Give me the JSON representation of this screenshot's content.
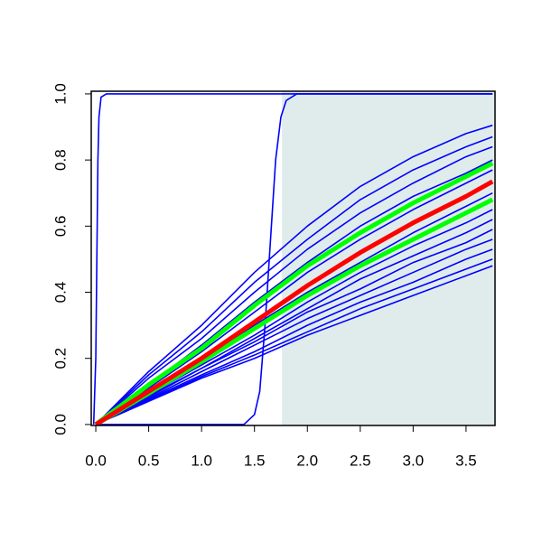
{
  "chart_data": {
    "type": "line",
    "xlim": [
      -0.043,
      3.774
    ],
    "ylim": [
      -0.003,
      1.008
    ],
    "xticks": [
      {
        "value": 0,
        "label": "0.0"
      },
      0.5,
      {
        "value": 1,
        "label": "1.0"
      },
      1.5,
      {
        "value": 2,
        "label": "2.0"
      },
      2.5,
      {
        "value": 3,
        "label": "3.0"
      },
      3.5
    ],
    "yticks": [
      {
        "value": 0,
        "label": "0.0"
      },
      0.2,
      0.4,
      0.6,
      0.8,
      {
        "value": 1,
        "label": "1.0"
      }
    ],
    "shade_x": [
      1.76,
      3.774
    ],
    "shade_color": "#e0ecec",
    "series": [
      {
        "color": "#0000ff",
        "line_width": 1.6,
        "x": [
          -0.02,
          0,
          0.01,
          0.02,
          0.03,
          0.05,
          0.1,
          3.75
        ],
        "values": [
          0,
          0.2,
          0.5,
          0.8,
          0.93,
          0.99,
          1,
          1
        ]
      },
      {
        "color": "#0000ff",
        "line_width": 1.6,
        "x": [
          0,
          1.4,
          1.5,
          1.55,
          1.6,
          1.65,
          1.7,
          1.75,
          1.8,
          1.9,
          3.75
        ],
        "values": [
          0,
          0,
          0.03,
          0.1,
          0.3,
          0.55,
          0.8,
          0.93,
          0.98,
          1,
          1
        ]
      },
      {
        "color": "#0000ff",
        "line_width": 1.6,
        "x": [
          0,
          0.5,
          1,
          1.5,
          2,
          2.5,
          3,
          3.5,
          3.75
        ],
        "values": [
          0,
          0.16,
          0.3,
          0.46,
          0.6,
          0.72,
          0.81,
          0.88,
          0.905
        ]
      },
      {
        "color": "#0000ff",
        "line_width": 1.6,
        "x": [
          0,
          0.5,
          1,
          1.5,
          2,
          2.5,
          3,
          3.5,
          3.75
        ],
        "values": [
          0,
          0.15,
          0.28,
          0.43,
          0.56,
          0.68,
          0.77,
          0.84,
          0.87
        ]
      },
      {
        "color": "#0000ff",
        "line_width": 1.6,
        "x": [
          0,
          0.5,
          1,
          1.5,
          2,
          2.5,
          3,
          3.5,
          3.75
        ],
        "values": [
          0,
          0.14,
          0.26,
          0.4,
          0.53,
          0.64,
          0.73,
          0.81,
          0.84
        ]
      },
      {
        "color": "#0000ff",
        "line_width": 1.6,
        "x": [
          0,
          0.5,
          1,
          1.5,
          2,
          2.5,
          3,
          3.5,
          3.75
        ],
        "values": [
          0,
          0.12,
          0.24,
          0.37,
          0.49,
          0.6,
          0.69,
          0.76,
          0.8
        ]
      },
      {
        "color": "#0000ff",
        "line_width": 1.6,
        "x": [
          0,
          0.5,
          1,
          1.5,
          2,
          2.5,
          3,
          3.5,
          3.75
        ],
        "values": [
          0,
          0.11,
          0.22,
          0.34,
          0.46,
          0.56,
          0.65,
          0.73,
          0.77
        ]
      },
      {
        "color": "#0000ff",
        "line_width": 1.6,
        "x": [
          0,
          0.5,
          1,
          1.5,
          2,
          2.5,
          3,
          3.5,
          3.75
        ],
        "values": [
          0,
          0.1,
          0.19,
          0.3,
          0.4,
          0.49,
          0.58,
          0.66,
          0.7
        ]
      },
      {
        "color": "#0000ff",
        "line_width": 1.6,
        "x": [
          0,
          0.5,
          1,
          1.5,
          2,
          2.5,
          3,
          3.5,
          3.75
        ],
        "values": [
          0,
          0.09,
          0.18,
          0.27,
          0.37,
          0.46,
          0.54,
          0.61,
          0.65
        ]
      },
      {
        "color": "#0000ff",
        "line_width": 1.6,
        "x": [
          0,
          0.5,
          1,
          1.5,
          2,
          2.5,
          3,
          3.5,
          3.75
        ],
        "values": [
          0,
          0.087,
          0.17,
          0.26,
          0.35,
          0.44,
          0.51,
          0.58,
          0.62
        ]
      },
      {
        "color": "#0000ff",
        "line_width": 1.6,
        "x": [
          0,
          0.5,
          1,
          1.5,
          2,
          2.5,
          3,
          3.5,
          3.75
        ],
        "values": [
          0,
          0.083,
          0.17,
          0.25,
          0.34,
          0.41,
          0.49,
          0.55,
          0.59
        ]
      },
      {
        "color": "#0000ff",
        "line_width": 1.6,
        "x": [
          0,
          0.5,
          1,
          1.5,
          2,
          2.5,
          3,
          3.5,
          3.75
        ],
        "values": [
          0,
          0.079,
          0.16,
          0.24,
          0.32,
          0.39,
          0.46,
          0.53,
          0.56
        ]
      },
      {
        "color": "#0000ff",
        "line_width": 1.6,
        "x": [
          0,
          0.5,
          1,
          1.5,
          2,
          2.5,
          3,
          3.5,
          3.75
        ],
        "values": [
          0,
          0.076,
          0.15,
          0.22,
          0.3,
          0.37,
          0.43,
          0.5,
          0.53
        ]
      },
      {
        "color": "#0000ff",
        "line_width": 1.6,
        "x": [
          0,
          0.5,
          1,
          1.5,
          2,
          2.5,
          3,
          3.5,
          3.75
        ],
        "values": [
          0,
          0.072,
          0.145,
          0.21,
          0.28,
          0.35,
          0.41,
          0.47,
          0.5
        ]
      },
      {
        "color": "#0000ff",
        "line_width": 1.6,
        "x": [
          0,
          0.5,
          1,
          1.5,
          2,
          2.5,
          3,
          3.5,
          3.75
        ],
        "values": [
          0,
          0.07,
          0.14,
          0.2,
          0.27,
          0.33,
          0.39,
          0.45,
          0.48
        ]
      },
      {
        "color": "#00ff00",
        "line_width": 5,
        "x": [
          0,
          0.5,
          1,
          1.5,
          2,
          2.5,
          3,
          3.5,
          3.75
        ],
        "values": [
          0,
          0.12,
          0.23,
          0.36,
          0.48,
          0.58,
          0.67,
          0.75,
          0.79
        ]
      },
      {
        "color": "#00ff00",
        "line_width": 5,
        "x": [
          0,
          0.5,
          1,
          1.5,
          2,
          2.5,
          3,
          3.5,
          3.75
        ],
        "values": [
          0,
          0.094,
          0.19,
          0.29,
          0.39,
          0.48,
          0.56,
          0.64,
          0.68
        ]
      },
      {
        "color": "#ff0000",
        "line_width": 5,
        "x": [
          0,
          0.5,
          1,
          1.5,
          2,
          2.5,
          3,
          3.5,
          3.75
        ],
        "values": [
          0,
          0.1,
          0.2,
          0.31,
          0.42,
          0.52,
          0.61,
          0.69,
          0.735
        ]
      }
    ]
  }
}
